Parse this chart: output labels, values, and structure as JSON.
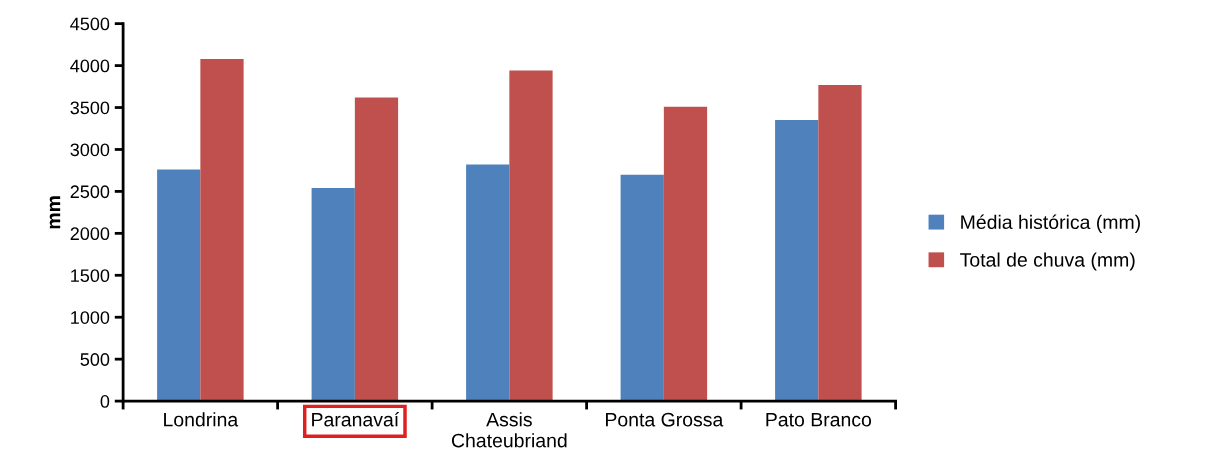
{
  "chart_data": {
    "type": "bar",
    "ylabel": "mm",
    "categories": [
      "Londrina",
      "Paranavaí",
      "Assis\nChateubriand",
      "Ponta Grossa",
      "Pato Branco"
    ],
    "series": [
      {
        "name": "Média histórica (mm)",
        "color": "#4f81bd",
        "values": [
          2760,
          2540,
          2820,
          2700,
          3350
        ]
      },
      {
        "name": "Total de chuva (mm)",
        "color": "#c0504d",
        "values": [
          4080,
          3620,
          3940,
          3510,
          3770
        ]
      }
    ],
    "ylim": [
      0,
      4500
    ],
    "yticks": [
      0,
      500,
      1000,
      1500,
      2000,
      2500,
      3000,
      3500,
      4000,
      4500
    ],
    "grid": false,
    "legend": "right"
  }
}
